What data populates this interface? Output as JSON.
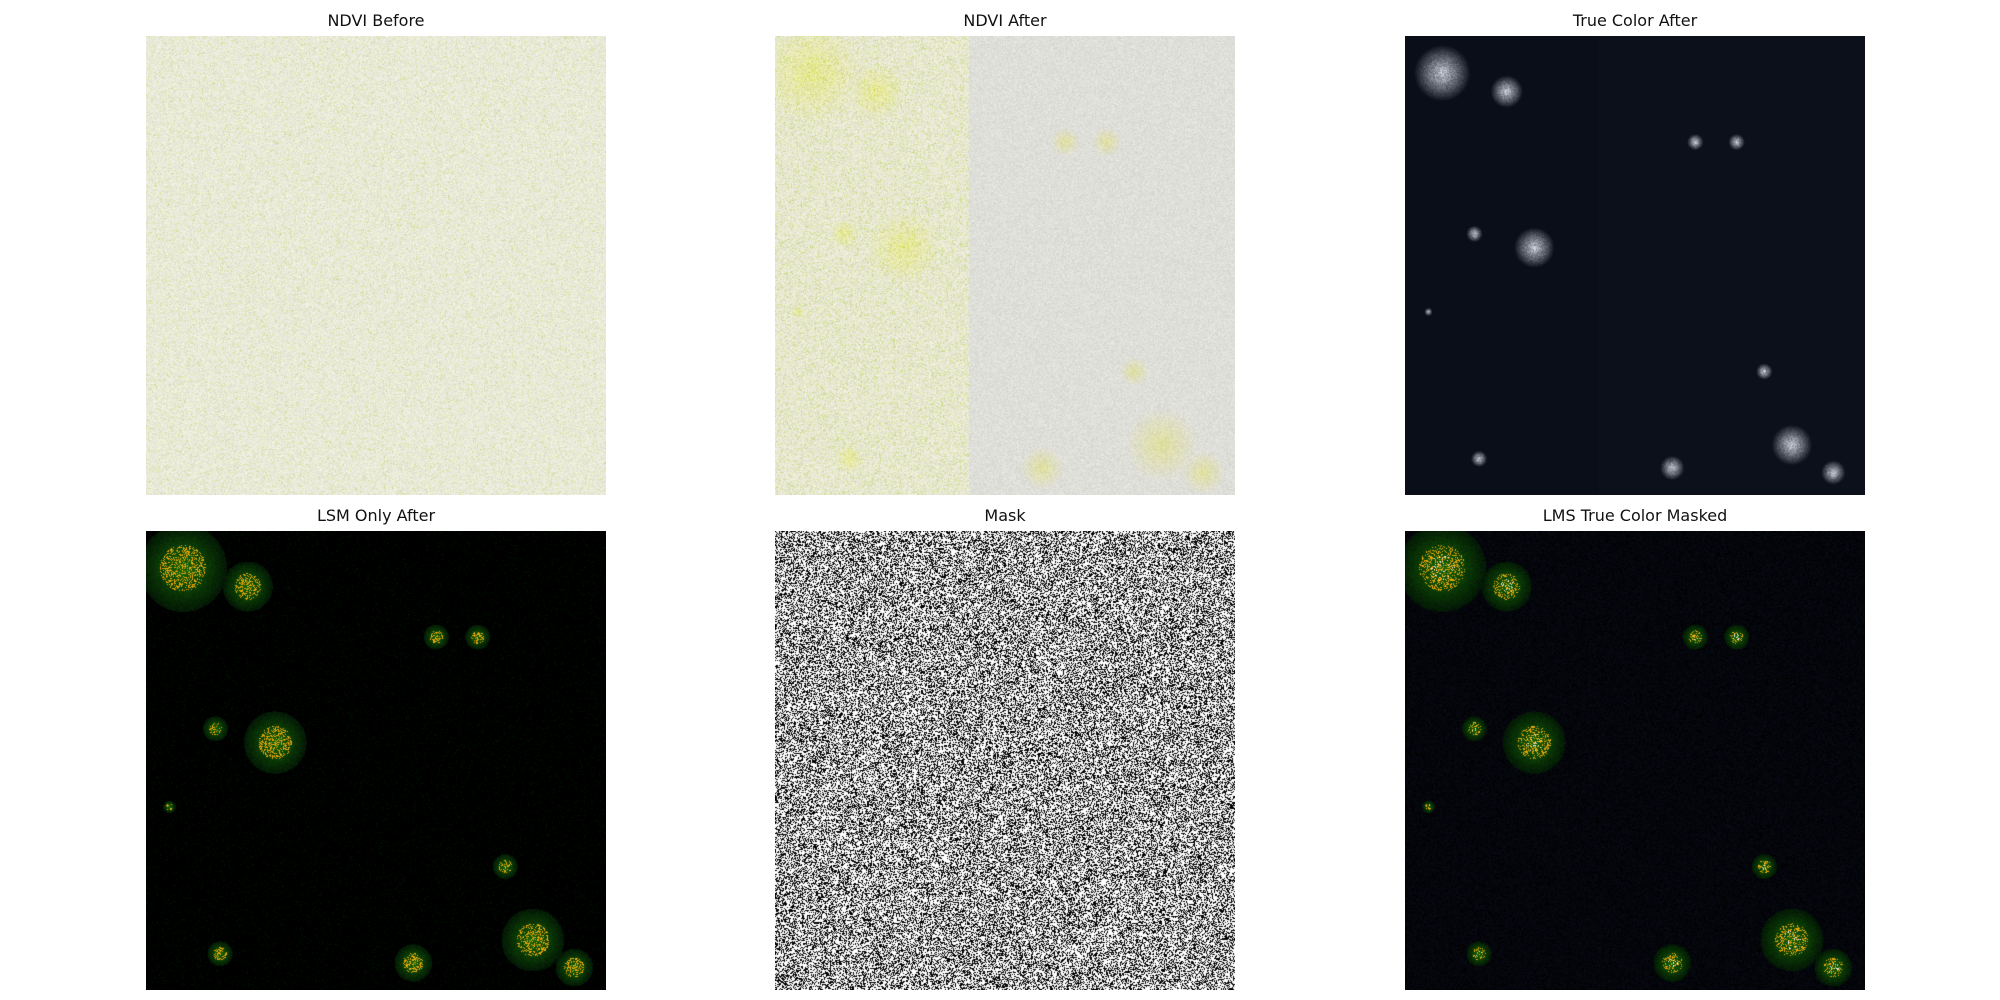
{
  "figure": {
    "panels": [
      {
        "title": "NDVI Before",
        "image": "speckled pale yellow-gray texture"
      },
      {
        "title": "NDVI After",
        "image": "pale gray field with yellow-green patches on left strip and corners"
      },
      {
        "title": "True Color After",
        "image": "dark navy scene with scattered small white clouds"
      },
      {
        "title": "LSM Only After",
        "image": "black field with green and orange blobs"
      },
      {
        "title": "Mask",
        "image": "black and white random binary noise"
      },
      {
        "title": "LMS True Color Masked",
        "image": "dark noisy field with green and orange blobs and white highlights"
      }
    ]
  },
  "colors": {
    "background": "#ffffff",
    "ndvi_base": "#e6e6dc",
    "ndvi_green": "#c8d24a",
    "night": "#0a0f19",
    "cloud": "#e6ebf5",
    "veg_green": "#2d6e0a",
    "veg_orange": "#e6a50a"
  }
}
